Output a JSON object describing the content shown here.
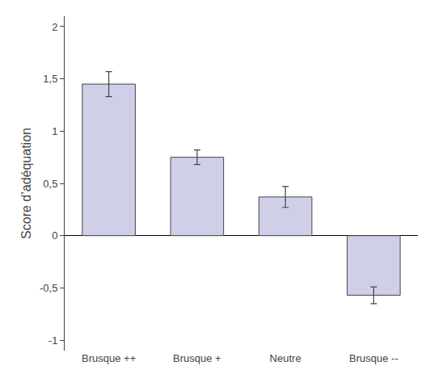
{
  "chart_data": {
    "type": "bar",
    "categories": [
      "Brusque ++",
      "Brusque +",
      "Neutre",
      "Brusque --"
    ],
    "values": [
      1.45,
      0.75,
      0.37,
      -0.57
    ],
    "errors": [
      0.12,
      0.07,
      0.1,
      0.08
    ],
    "color": "#cfd0e8",
    "ylabel": "Score d’adéquation",
    "ylim": [
      -1.1,
      2.1
    ],
    "yticks": [
      -1,
      {
        "value": -0.5,
        "label": "-0,5"
      },
      0,
      {
        "value": 0.5,
        "label": "0,5"
      },
      1,
      {
        "value": 1.5,
        "label": "1,5"
      },
      2
    ],
    "grid": false
  }
}
